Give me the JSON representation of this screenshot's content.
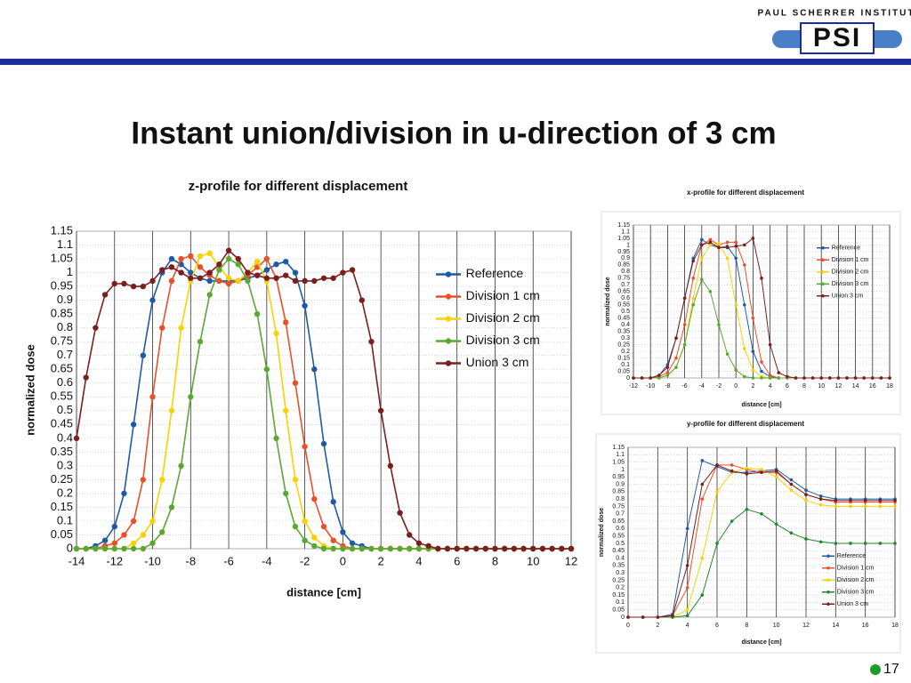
{
  "header": {
    "institute": "PAUL SCHERRER INSTITUT",
    "logo": "PSI"
  },
  "title": "Instant union/division in u-direction of 3 cm",
  "page_number": "17",
  "chart_data": [
    {
      "type": "line",
      "title": "z-profile for different displacement",
      "x_label": "distance [cm]",
      "y_label": "normalized dose",
      "xlim": [
        -14,
        12
      ],
      "xticks": [
        -14,
        -12,
        -10,
        -8,
        -6,
        -4,
        -2,
        0,
        2,
        4,
        6,
        8,
        10,
        12
      ],
      "ylim": [
        0,
        1.15
      ],
      "yticks": [
        0,
        0.05,
        0.1,
        0.15,
        0.2,
        0.25,
        0.3,
        0.35,
        0.4,
        0.45,
        0.5,
        0.55,
        0.6,
        0.65,
        0.7,
        0.75,
        0.8,
        0.85,
        0.9,
        0.95,
        1,
        1.05,
        1.1,
        1.15
      ],
      "grid": true,
      "legend": "upper right",
      "x": [
        -14,
        -13.5,
        -13,
        -12.5,
        -12,
        -11.5,
        -11,
        -10.5,
        -10,
        -9.5,
        -9,
        -8.5,
        -8,
        -7.5,
        -7,
        -6.5,
        -6,
        -5.5,
        -5,
        -4.5,
        -4,
        -3.5,
        -3,
        -2.5,
        -2,
        -1.5,
        -1,
        -0.5,
        0,
        0.5,
        1,
        1.5,
        2,
        2.5,
        3,
        3.5,
        4,
        4.5,
        5,
        5.5,
        6,
        6.5,
        7,
        7.5,
        8,
        8.5,
        9,
        9.5,
        10,
        10.5,
        11,
        11.5,
        12
      ],
      "series": [
        {
          "name": "Reference",
          "color": "#1f5aa6",
          "values": [
            0,
            0,
            0.01,
            0.03,
            0.08,
            0.2,
            0.45,
            0.7,
            0.9,
            1.0,
            1.05,
            1.03,
            1.0,
            0.98,
            0.97,
            0.97,
            0.97,
            0.97,
            0.98,
            0.99,
            1.01,
            1.03,
            1.04,
            1.0,
            0.88,
            0.65,
            0.38,
            0.17,
            0.06,
            0.02,
            0.01,
            0,
            0,
            0,
            0,
            0,
            0,
            0,
            0,
            0,
            0,
            0,
            0,
            0,
            0,
            0,
            0,
            0,
            0,
            0,
            0,
            0,
            0
          ]
        },
        {
          "name": "Division 1 cm",
          "color": "#e8502a",
          "values": [
            0,
            0,
            0,
            0.01,
            0.02,
            0.05,
            0.1,
            0.25,
            0.55,
            0.8,
            0.97,
            1.05,
            1.06,
            1.02,
            0.99,
            0.97,
            0.96,
            0.97,
            0.99,
            1.02,
            1.05,
            0.98,
            0.82,
            0.6,
            0.37,
            0.18,
            0.08,
            0.03,
            0.01,
            0,
            0,
            0,
            0,
            0,
            0,
            0,
            0,
            0,
            0,
            0,
            0,
            0,
            0,
            0,
            0,
            0,
            0,
            0,
            0,
            0,
            0,
            0,
            0
          ]
        },
        {
          "name": "Division 2 cm",
          "color": "#f5d200",
          "values": [
            0,
            0,
            0,
            0,
            0,
            0,
            0.02,
            0.05,
            0.1,
            0.25,
            0.5,
            0.8,
            0.97,
            1.06,
            1.07,
            1.02,
            0.98,
            0.97,
            1.0,
            1.04,
            0.97,
            0.78,
            0.5,
            0.25,
            0.1,
            0.04,
            0.01,
            0,
            0,
            0,
            0,
            0,
            0,
            0,
            0,
            0,
            0,
            0,
            0,
            0,
            0,
            0,
            0,
            0,
            0,
            0,
            0,
            0,
            0,
            0,
            0,
            0,
            0
          ]
        },
        {
          "name": "Division 3 cm",
          "color": "#5aa832",
          "values": [
            0,
            0,
            0,
            0,
            0,
            0,
            0,
            0,
            0.02,
            0.06,
            0.15,
            0.3,
            0.55,
            0.75,
            0.92,
            1.01,
            1.05,
            1.03,
            0.97,
            0.85,
            0.65,
            0.4,
            0.2,
            0.08,
            0.03,
            0.01,
            0,
            0,
            0,
            0,
            0,
            0,
            0,
            0,
            0,
            0,
            0,
            0,
            0,
            0,
            0,
            0,
            0,
            0,
            0,
            0,
            0,
            0,
            0,
            0,
            0,
            0,
            0
          ]
        },
        {
          "name": "Union 3 cm",
          "color": "#7b1e1e",
          "values": [
            0.4,
            0.62,
            0.8,
            0.92,
            0.96,
            0.96,
            0.95,
            0.95,
            0.97,
            1.01,
            1.02,
            1.0,
            0.98,
            0.98,
            1.0,
            1.03,
            1.08,
            1.05,
            1.0,
            0.99,
            0.98,
            0.98,
            0.99,
            0.97,
            0.97,
            0.97,
            0.98,
            0.98,
            1.0,
            1.01,
            0.9,
            0.75,
            0.5,
            0.3,
            0.13,
            0.05,
            0.02,
            0.01,
            0,
            0,
            0,
            0,
            0,
            0,
            0,
            0,
            0,
            0,
            0,
            0,
            0,
            0,
            0
          ]
        }
      ]
    },
    {
      "type": "line",
      "title": "x-profile for different displacement",
      "x_label": "distance [cm]",
      "y_label": "normalized dose",
      "xlim": [
        -12,
        18
      ],
      "xticks": [
        -12,
        -10,
        -8,
        -6,
        -4,
        -2,
        0,
        2,
        4,
        6,
        8,
        10,
        12,
        14,
        16,
        18
      ],
      "ylim": [
        0,
        1.15
      ],
      "yticks": [
        0,
        0.05,
        0.1,
        0.15,
        0.2,
        0.25,
        0.3,
        0.35,
        0.4,
        0.45,
        0.5,
        0.55,
        0.6,
        0.65,
        0.7,
        0.75,
        0.8,
        0.85,
        0.9,
        0.95,
        1,
        1.05,
        1.1,
        1.15
      ],
      "grid": true,
      "legend": "upper right",
      "x": [
        -12,
        -11,
        -10,
        -9,
        -8,
        -7,
        -6,
        -5,
        -4,
        -3,
        -2,
        -1,
        0,
        1,
        2,
        3,
        4,
        5,
        6,
        7,
        8,
        9,
        10,
        11,
        12,
        13,
        14,
        15,
        16,
        17,
        18
      ],
      "series": [
        {
          "name": "Reference",
          "color": "#1f5aa6",
          "values": [
            0,
            0,
            0,
            0.02,
            0.1,
            0.3,
            0.6,
            0.9,
            1.04,
            1.0,
            0.98,
            0.99,
            0.9,
            0.55,
            0.2,
            0.05,
            0.01,
            0,
            0,
            0,
            0,
            0,
            0,
            0,
            0,
            0,
            0,
            0,
            0,
            0,
            0
          ]
        },
        {
          "name": "Division 1 cm",
          "color": "#e8502a",
          "values": [
            0,
            0,
            0,
            0.01,
            0.04,
            0.15,
            0.4,
            0.75,
            1.0,
            1.04,
            1.0,
            1.02,
            1.02,
            0.85,
            0.45,
            0.12,
            0.02,
            0,
            0,
            0,
            0,
            0,
            0,
            0,
            0,
            0,
            0,
            0,
            0,
            0,
            0
          ]
        },
        {
          "name": "Division 2 cm",
          "color": "#f5d200",
          "values": [
            0,
            0,
            0,
            0,
            0.02,
            0.08,
            0.25,
            0.6,
            0.9,
            1.0,
            1.01,
            0.9,
            0.55,
            0.22,
            0.06,
            0.01,
            0,
            0,
            0,
            0,
            0,
            0,
            0,
            0,
            0,
            0,
            0,
            0,
            0,
            0,
            0
          ]
        },
        {
          "name": "Division 3 cm",
          "color": "#5aa832",
          "values": [
            0,
            0,
            0,
            0,
            0.02,
            0.08,
            0.25,
            0.55,
            0.74,
            0.65,
            0.4,
            0.18,
            0.06,
            0.01,
            0,
            0,
            0,
            0,
            0,
            0,
            0,
            0,
            0,
            0,
            0,
            0,
            0,
            0,
            0,
            0,
            0
          ]
        },
        {
          "name": "Union 3 cm",
          "color": "#7b1e1e",
          "values": [
            0,
            0,
            0,
            0.02,
            0.08,
            0.3,
            0.6,
            0.88,
            1.0,
            1.02,
            0.98,
            0.98,
            0.99,
            1.0,
            1.05,
            0.75,
            0.25,
            0.04,
            0.01,
            0,
            0,
            0,
            0,
            0,
            0,
            0,
            0,
            0,
            0,
            0,
            0
          ]
        }
      ]
    },
    {
      "type": "line",
      "title": "y-profile for different displacement",
      "x_label": "distance [cm]",
      "y_label": "normalized dose",
      "xlim": [
        0,
        18
      ],
      "xticks": [
        0,
        2,
        4,
        6,
        8,
        10,
        12,
        14,
        16,
        18
      ],
      "ylim": [
        0,
        1.15
      ],
      "yticks": [
        0,
        0.05,
        0.1,
        0.15,
        0.2,
        0.25,
        0.3,
        0.35,
        0.4,
        0.45,
        0.5,
        0.55,
        0.6,
        0.65,
        0.7,
        0.75,
        0.8,
        0.85,
        0.9,
        0.95,
        1,
        1.05,
        1.1,
        1.15
      ],
      "grid": true,
      "legend": "lower right",
      "x": [
        0,
        1,
        2,
        3,
        4,
        5,
        6,
        7,
        8,
        9,
        10,
        11,
        12,
        13,
        14,
        15,
        16,
        17,
        18
      ],
      "series": [
        {
          "name": "Reference",
          "color": "#1f5aa6",
          "values": [
            0,
            0,
            0,
            0.02,
            0.6,
            1.06,
            1.02,
            0.98,
            0.98,
            0.99,
            1.0,
            0.93,
            0.86,
            0.82,
            0.8,
            0.8,
            0.8,
            0.8,
            0.8
          ]
        },
        {
          "name": "Division 1 cm",
          "color": "#e8502a",
          "values": [
            0,
            0,
            0,
            0.01,
            0.2,
            0.8,
            1.03,
            1.03,
            1.0,
            0.98,
            0.98,
            0.9,
            0.83,
            0.8,
            0.78,
            0.78,
            0.78,
            0.78,
            0.78
          ]
        },
        {
          "name": "Division 2 cm",
          "color": "#f5d200",
          "values": [
            0,
            0,
            0,
            0,
            0.05,
            0.4,
            0.85,
            0.98,
            1.01,
            1.0,
            0.95,
            0.86,
            0.79,
            0.76,
            0.75,
            0.75,
            0.75,
            0.75,
            0.75
          ]
        },
        {
          "name": "Division 3 cm",
          "color": "#1e8a28",
          "values": [
            0,
            0,
            0,
            0,
            0.01,
            0.15,
            0.5,
            0.65,
            0.73,
            0.7,
            0.63,
            0.57,
            0.53,
            0.51,
            0.5,
            0.5,
            0.5,
            0.5,
            0.5
          ]
        },
        {
          "name": "Union 3 cm",
          "color": "#7b1e1e",
          "values": [
            0,
            0,
            0,
            0.01,
            0.35,
            0.9,
            1.03,
            0.99,
            0.97,
            0.98,
            0.99,
            0.9,
            0.83,
            0.8,
            0.79,
            0.79,
            0.79,
            0.79,
            0.79
          ]
        }
      ]
    }
  ]
}
